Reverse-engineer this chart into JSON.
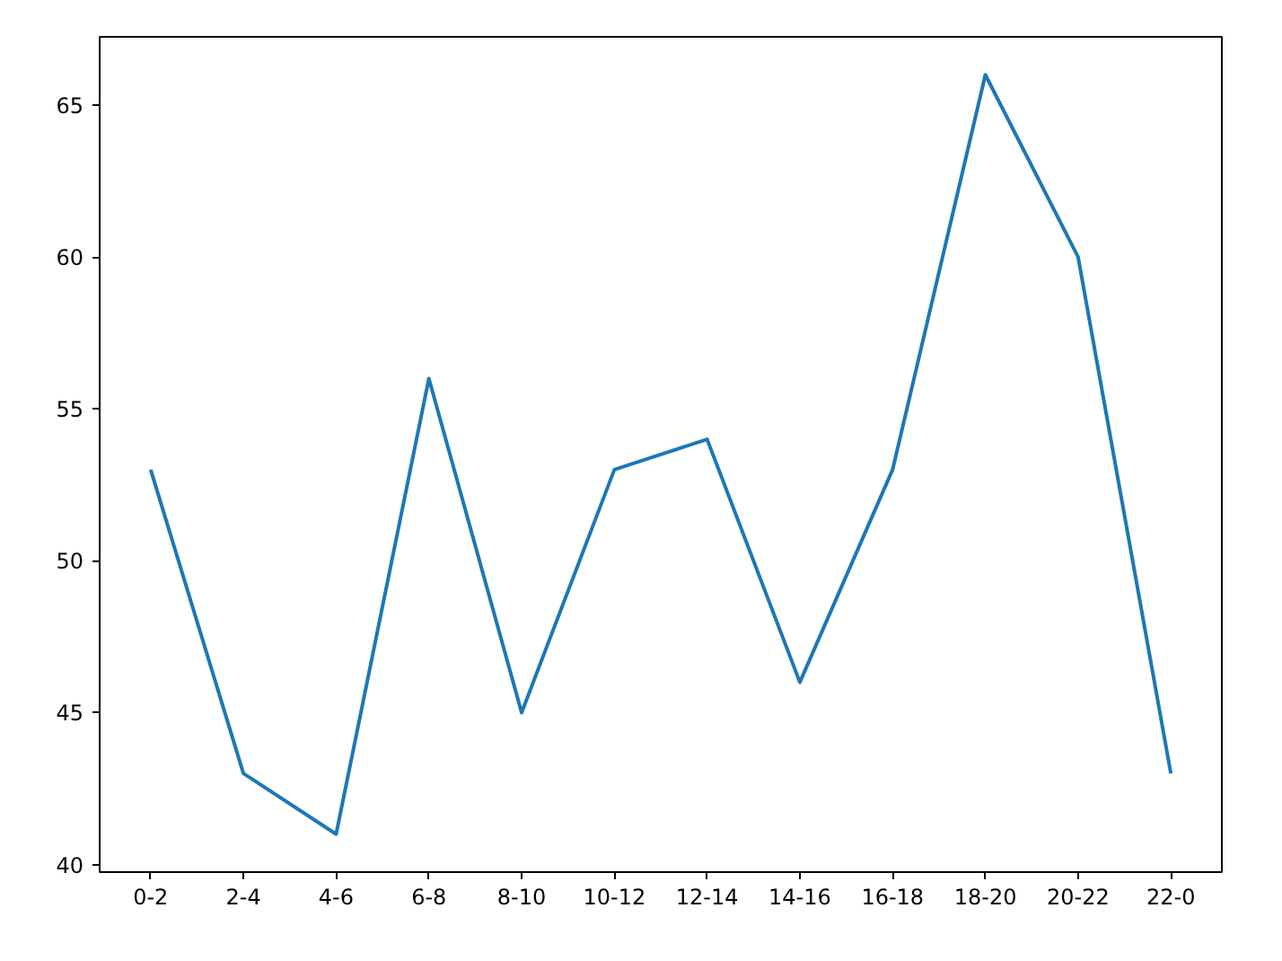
{
  "chart_data": {
    "type": "line",
    "categories": [
      "0-2",
      "2-4",
      "4-6",
      "6-8",
      "8-10",
      "10-12",
      "12-14",
      "14-16",
      "16-18",
      "18-20",
      "20-22",
      "22-0"
    ],
    "series": [
      {
        "color": "#1f77b4",
        "values": [
          53,
          43,
          41,
          56,
          45,
          53,
          54,
          46,
          53,
          66,
          60,
          43
        ]
      }
    ],
    "ylim": [
      39.75,
      67.25
    ],
    "yticks": [
      40,
      45,
      50,
      55,
      60,
      65
    ],
    "grid": false,
    "marker": "none",
    "line_style": "solid"
  }
}
